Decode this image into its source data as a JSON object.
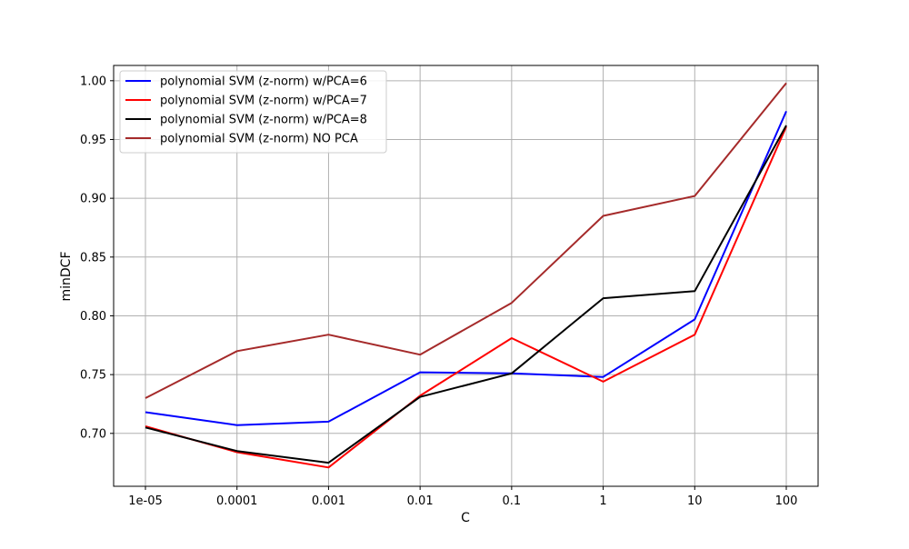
{
  "chart_data": {
    "type": "line",
    "title": "",
    "xlabel": "C",
    "ylabel": "minDCF",
    "categories": [
      "1e-05",
      "0.0001",
      "0.001",
      "0.01",
      "0.1",
      "1",
      "10",
      "100"
    ],
    "ylim": [
      0.655,
      1.013
    ],
    "yticks": [
      0.7,
      0.75,
      0.8,
      0.85,
      0.9,
      0.95,
      1.0
    ],
    "ytick_labels": [
      "0.70",
      "0.75",
      "0.80",
      "0.85",
      "0.90",
      "0.95",
      "1.00"
    ],
    "grid": true,
    "legend_position": "top-left",
    "series": [
      {
        "name": "polynomial SVM (z-norm) w/PCA=6",
        "color": "#0000ff",
        "values": [
          0.718,
          0.707,
          0.71,
          0.752,
          0.751,
          0.748,
          0.797,
          0.974
        ]
      },
      {
        "name": "polynomial SVM (z-norm) w/PCA=7",
        "color": "#ff0000",
        "values": [
          0.706,
          0.684,
          0.671,
          0.732,
          0.781,
          0.744,
          0.784,
          0.961
        ]
      },
      {
        "name": "polynomial SVM (z-norm) w/PCA=8",
        "color": "#000000",
        "values": [
          0.705,
          0.685,
          0.675,
          0.731,
          0.751,
          0.815,
          0.821,
          0.962
        ]
      },
      {
        "name": "polynomial SVM (z-norm) NO PCA",
        "color": "#a52a2a",
        "values": [
          0.73,
          0.77,
          0.784,
          0.767,
          0.811,
          0.885,
          0.902,
          0.998
        ]
      }
    ]
  }
}
